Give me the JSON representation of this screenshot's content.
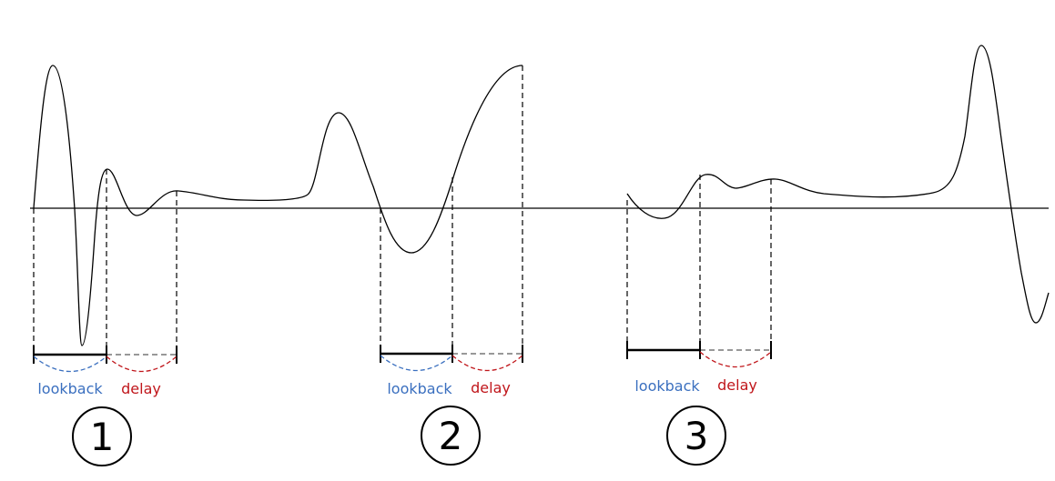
{
  "colors": {
    "signal": "#000000",
    "lookback": "#3a6fbf",
    "delay": "#c0161b",
    "delay_segment": "#777777"
  },
  "segments": [
    {
      "number": "1",
      "lookback_label": "lookback",
      "delay_label": "delay"
    },
    {
      "number": "2",
      "lookback_label": "lookback",
      "delay_label": "delay"
    },
    {
      "number": "3",
      "lookback_label": "lookback",
      "delay_label": "delay"
    }
  ]
}
